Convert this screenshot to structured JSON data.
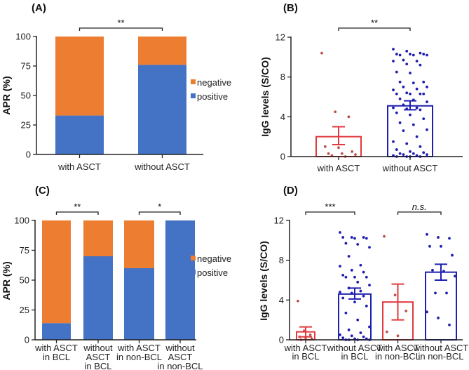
{
  "chart_data": [
    {
      "panel": "(A)",
      "type": "bar",
      "stacked": true,
      "ylabel": "APR (%)",
      "ylim": [
        0,
        100
      ],
      "yticks": [
        "0",
        "25",
        "50",
        "75",
        "100"
      ],
      "categories": [
        [
          "with ASCT"
        ],
        [
          "without ASCT"
        ]
      ],
      "series": [
        {
          "name": "positive",
          "color": "#4472C4",
          "values": [
            33,
            76
          ]
        },
        {
          "name": "negative",
          "color": "#ED7D31",
          "values": [
            67,
            24
          ]
        }
      ],
      "legend": "right",
      "significance": [
        {
          "from": 0,
          "to": 1,
          "label": "**"
        }
      ]
    },
    {
      "panel": "(B)",
      "type": "bar-scatter",
      "ylabel": "IgG levels (S/CO)",
      "ylim": [
        0,
        12
      ],
      "yticks": [
        "0",
        "4",
        "8",
        "12"
      ],
      "categories": [
        [
          "with ASCT"
        ],
        [
          "without ASCT"
        ]
      ],
      "colors": [
        "#E03A3E",
        "#1F1FB0"
      ],
      "means": [
        2.0,
        5.1
      ],
      "sem": [
        [
          1.2,
          3.0
        ],
        [
          4.7,
          5.6
        ]
      ],
      "points": [
        [
          10.4,
          4.5,
          4.0,
          1.0,
          0.9,
          0.5,
          0.3,
          0.3,
          0.2,
          0.1,
          0.0
        ],
        [
          10.8,
          10.6,
          10.4,
          10.3,
          10.3,
          10.3,
          10.2,
          10.2,
          10.2,
          9.7,
          9.6,
          9.6,
          9.3,
          9.2,
          8.5,
          8.4,
          7.5,
          7.5,
          7.4,
          7.0,
          7.0,
          6.8,
          6.7,
          6.4,
          6.3,
          6.3,
          6.3,
          6.3,
          5.8,
          5.7,
          5.5,
          5.2,
          4.9,
          4.9,
          4.8,
          4.7,
          4.4,
          4.2,
          3.8,
          3.4,
          3.2,
          2.7,
          2.6,
          2.0,
          1.5,
          1.3,
          1.0,
          0.7,
          0.5,
          0.4,
          0.3,
          0.3,
          0.2,
          0.2,
          0.1,
          0.1,
          0.0,
          0.0,
          0.0,
          0.0
        ]
      ],
      "significance": [
        {
          "from": 0,
          "to": 1,
          "label": "**",
          "italic": false
        }
      ]
    },
    {
      "panel": "(C)",
      "type": "bar",
      "stacked": true,
      "ylabel": "APR (%)",
      "ylim": [
        0,
        100
      ],
      "yticks": [
        "0",
        "25",
        "50",
        "75",
        "100"
      ],
      "categories": [
        [
          "with ASCT",
          "in BCL"
        ],
        [
          "without",
          "ASCT",
          "in BCL"
        ],
        [
          "with ASCT",
          "in non-BCL"
        ],
        [
          "without",
          "ASCT",
          "in non-BCL"
        ]
      ],
      "series": [
        {
          "name": "positive",
          "color": "#4472C4",
          "values": [
            14,
            70,
            60,
            100
          ]
        },
        {
          "name": "negative",
          "color": "#ED7D31",
          "values": [
            86,
            30,
            40,
            0
          ]
        }
      ],
      "legend": "right",
      "significance": [
        {
          "from": 0,
          "to": 1,
          "label": "**"
        },
        {
          "from": 2,
          "to": 3,
          "label": "*"
        }
      ]
    },
    {
      "panel": "(D)",
      "type": "bar-scatter",
      "ylabel": "IgG levels (S/CO)",
      "ylim": [
        0,
        12
      ],
      "yticks": [
        "0",
        "4",
        "8",
        "12"
      ],
      "categories": [
        [
          "with ASCT",
          "in BCL"
        ],
        [
          "without ASCT",
          "in BCL"
        ],
        [
          "with ASCT",
          "in non-BCL"
        ],
        [
          "without ASCT",
          "in non-BCL"
        ]
      ],
      "colors": [
        "#E03A3E",
        "#1F1FB0",
        "#E03A3E",
        "#1F1FB0"
      ],
      "means": [
        0.8,
        4.6,
        3.8,
        6.8
      ],
      "sem": [
        [
          0.3,
          1.3
        ],
        [
          4.1,
          5.2
        ],
        [
          2.0,
          5.6
        ],
        [
          6.0,
          7.6
        ]
      ],
      "points": [
        [
          3.9,
          0.9,
          0.5,
          0.3,
          0.2,
          0.1,
          0.0
        ],
        [
          10.8,
          10.3,
          10.3,
          10.3,
          10.2,
          10.2,
          9.7,
          9.6,
          9.3,
          8.4,
          7.5,
          7.4,
          7.0,
          6.8,
          6.5,
          6.3,
          6.3,
          6.3,
          5.8,
          5.5,
          5.2,
          4.9,
          4.8,
          4.7,
          4.4,
          4.2,
          3.8,
          3.4,
          2.7,
          2.0,
          1.3,
          1.0,
          0.7,
          0.5,
          0.4,
          0.3,
          0.2,
          0.1,
          0.1,
          0.0,
          0.0,
          0.0,
          0.0
        ],
        [
          10.4,
          4.5,
          2.9,
          0.8,
          0.4
        ],
        [
          10.6,
          10.3,
          10.2,
          9.4,
          9.4,
          8.5,
          7.0,
          6.9,
          6.4,
          4.7,
          4.7,
          2.8,
          2.2,
          1.5
        ]
      ],
      "significance": [
        {
          "from": 0,
          "to": 1,
          "label": "***",
          "italic": false
        },
        {
          "from": 2,
          "to": 3,
          "label": "n.s.",
          "italic": true
        }
      ]
    }
  ]
}
